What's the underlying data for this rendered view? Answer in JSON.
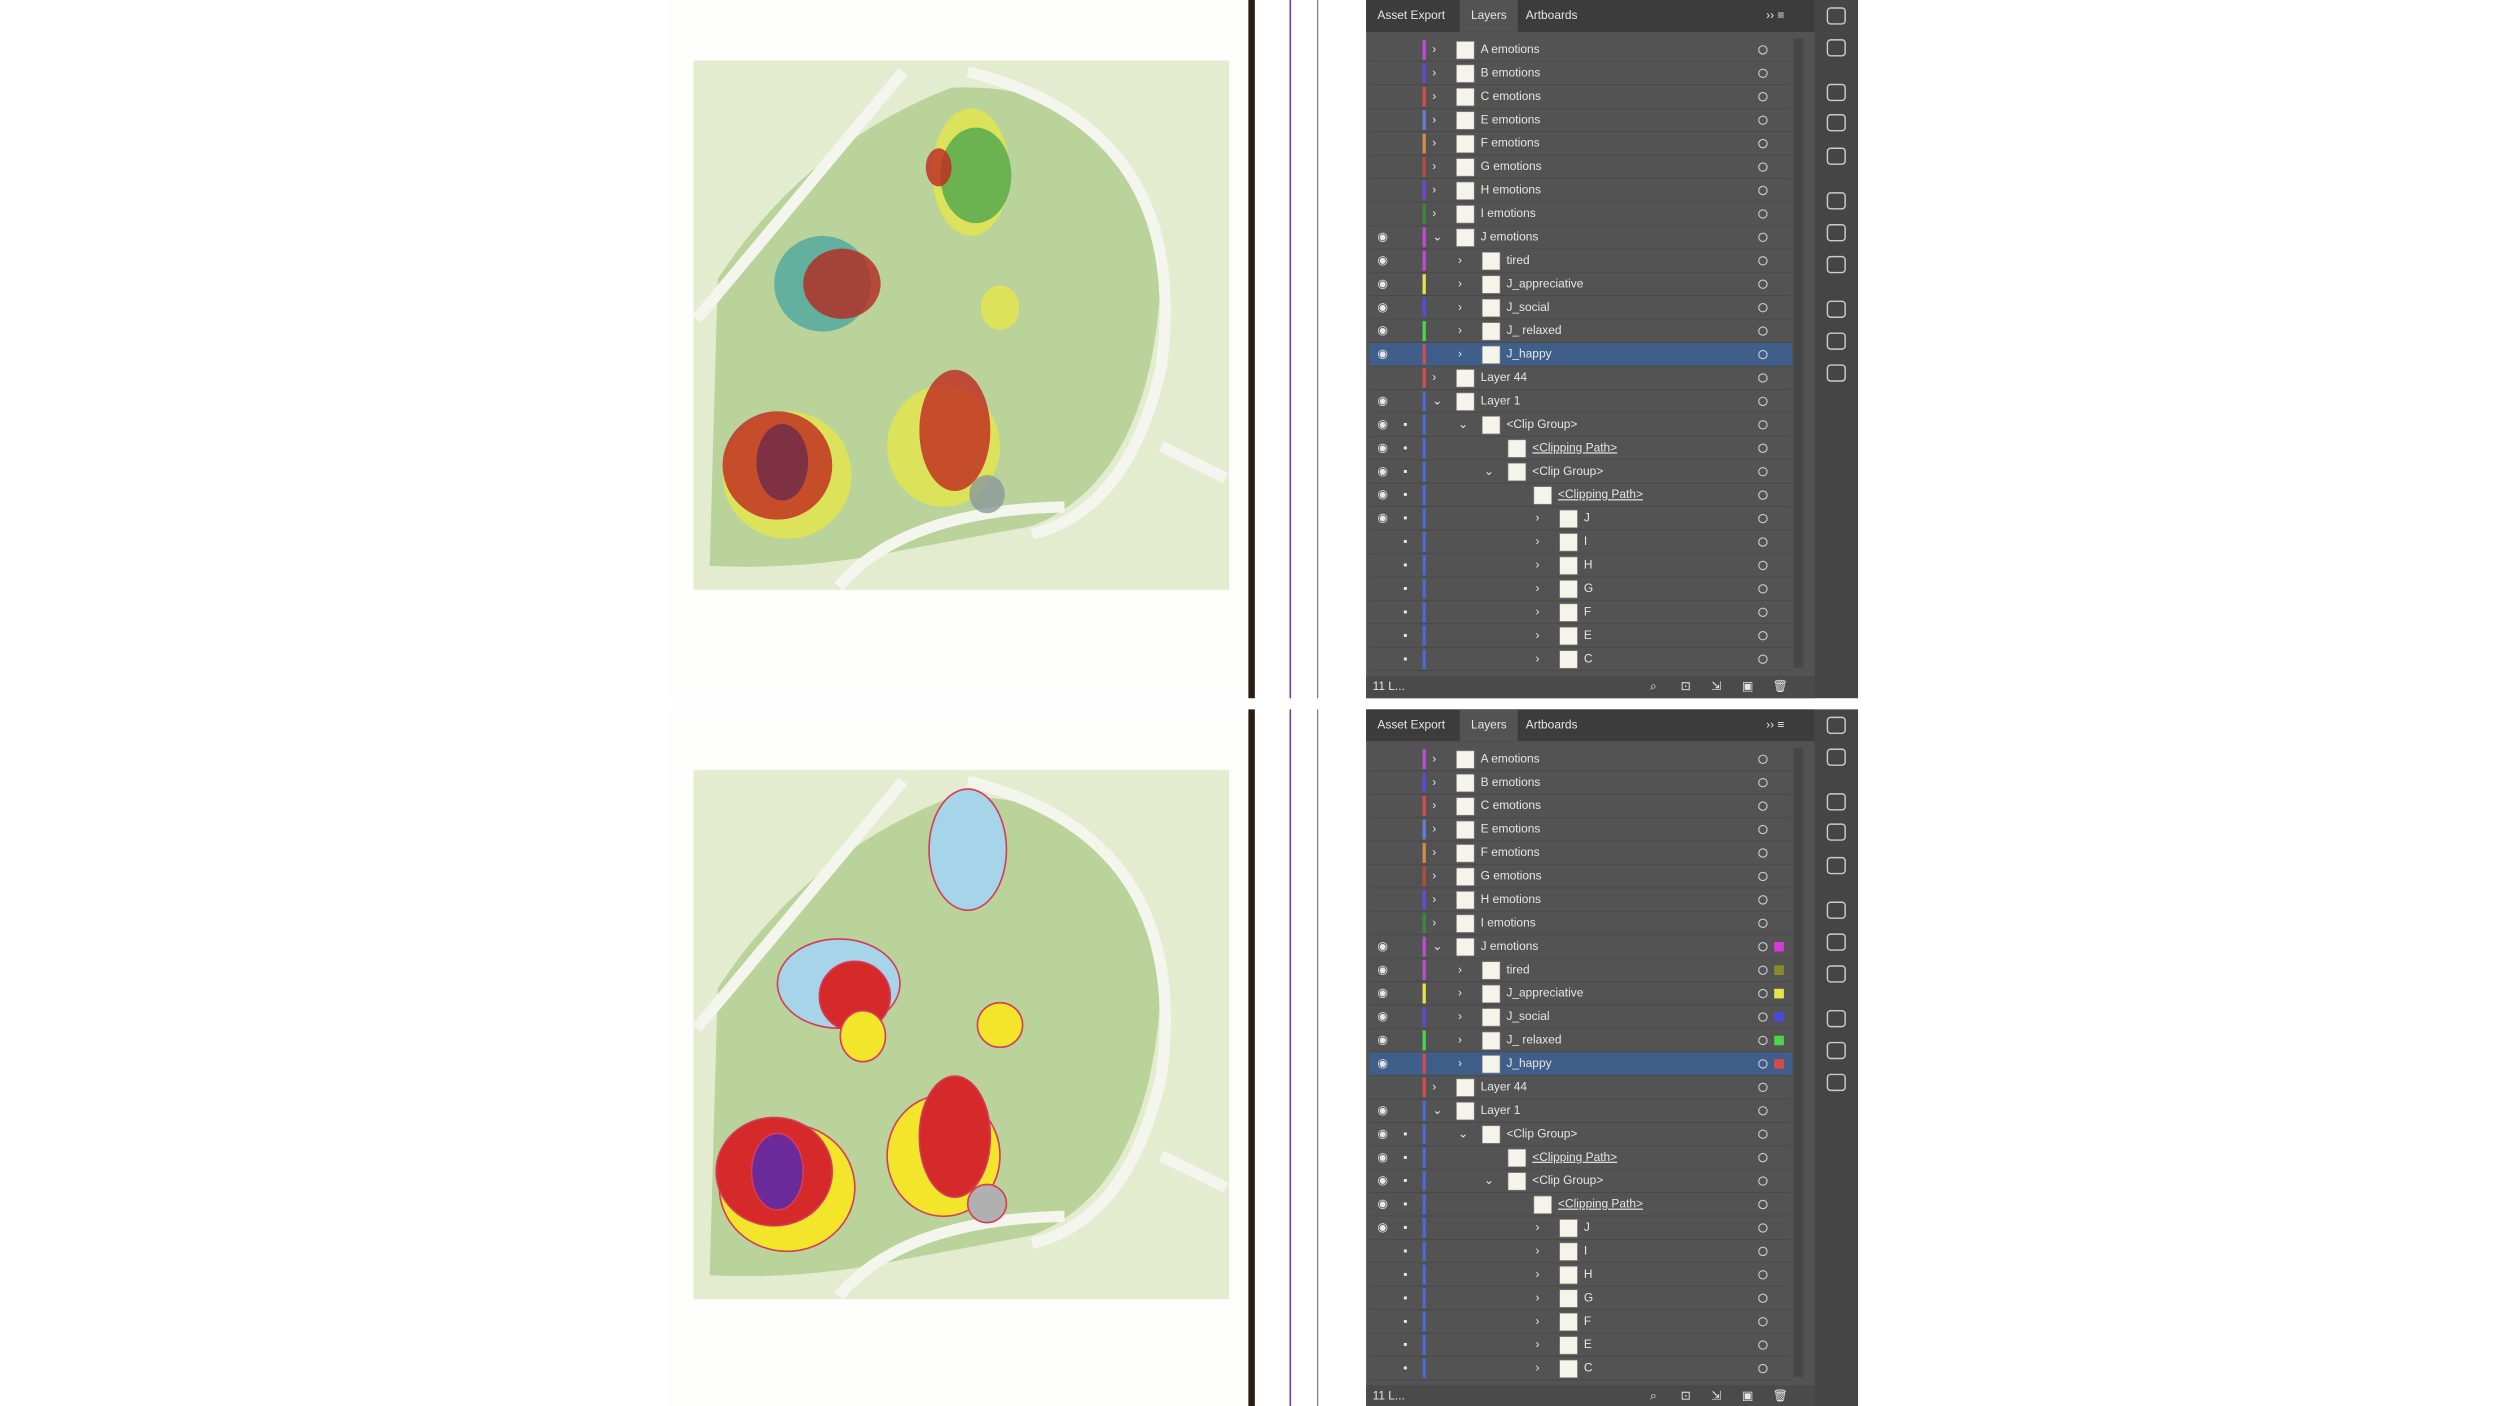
{
  "panels": [
    {
      "tabs": [
        "Asset Export",
        "Layers",
        "Artboards"
      ],
      "layers": [
        "A emotions",
        "B emotions",
        "C emotions",
        "E emotions",
        "F emotions",
        "G emotions",
        "H emotions",
        "I emotions",
        "J emotions",
        "tired",
        "J_appreciative",
        "J_social",
        "J_ relaxed",
        "J_happy",
        "Layer 44",
        "Layer 1",
        "<Clip Group>",
        "<Clipping Path>",
        "<Clip Group>",
        "<Clipping Path>",
        "J",
        "I",
        "H",
        "G",
        "F",
        "E",
        "C"
      ],
      "footer": "11 L..."
    },
    {
      "tabs": [
        "Asset Export",
        "Layers",
        "Artboards"
      ],
      "layers": [
        "A emotions",
        "B emotions",
        "C emotions",
        "E emotions",
        "F emotions",
        "G emotions",
        "H emotions",
        "I emotions",
        "J emotions",
        "tired",
        "J_appreciative",
        "J_social",
        "J_ relaxed",
        "J_happy",
        "Layer 44",
        "Layer 1",
        "<Clip Group>",
        "<Clipping Path>",
        "<Clip Group>",
        "<Clipping Path>",
        "J",
        "I",
        "H",
        "G",
        "F",
        "E",
        "C"
      ],
      "footer": "11 L..."
    }
  ]
}
